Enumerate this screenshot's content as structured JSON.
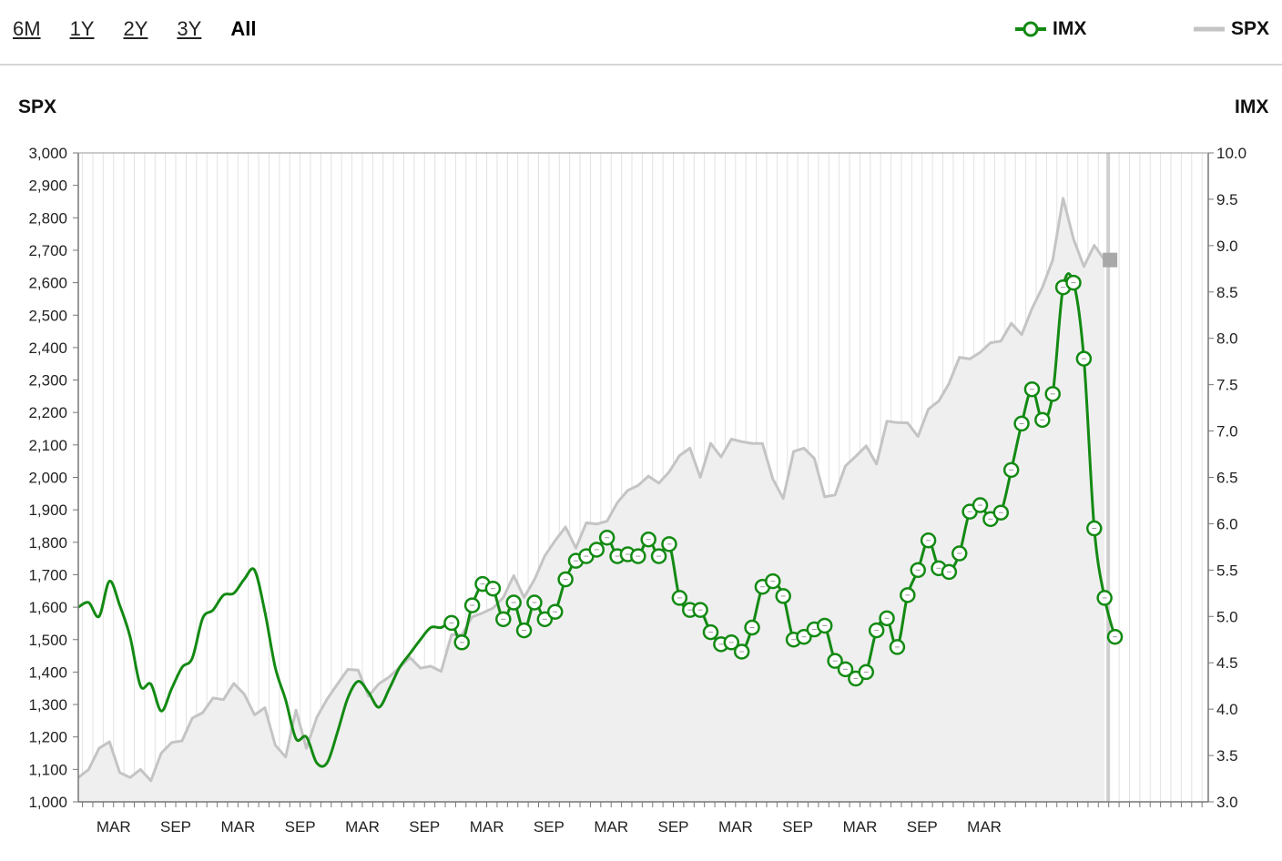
{
  "range_buttons": [
    {
      "label": "6M",
      "active": false
    },
    {
      "label": "1Y",
      "active": false
    },
    {
      "label": "2Y",
      "active": false
    },
    {
      "label": "3Y",
      "active": false
    },
    {
      "label": "All",
      "active": true
    }
  ],
  "legend": [
    {
      "name": "IMX",
      "color": "#138a13"
    },
    {
      "name": "SPX",
      "color": "#c4c4c4"
    }
  ],
  "chart_data": {
    "type": "line",
    "left_axis_title": "SPX",
    "right_axis_title": "IMX",
    "left_range": [
      1000,
      3000
    ],
    "right_range": [
      3.0,
      10.0
    ],
    "left_ticks": [
      "1,000",
      "1,100",
      "1,200",
      "1,300",
      "1,400",
      "1,500",
      "1,600",
      "1,700",
      "1,800",
      "1,900",
      "2,000",
      "2,100",
      "2,200",
      "2,300",
      "2,400",
      "2,500",
      "2,600",
      "2,700",
      "2,800",
      "2,900",
      "3,000"
    ],
    "right_ticks": [
      "3.0",
      "3.5",
      "4.0",
      "4.5",
      "5.0",
      "5.5",
      "6.0",
      "6.5",
      "7.0",
      "7.5",
      "8.0",
      "8.5",
      "9.0",
      "9.5",
      "10.0"
    ],
    "x_range": [
      0,
      109
    ],
    "x_ticks": [
      {
        "label": "MAR",
        "x": 3.4
      },
      {
        "label": "SEP",
        "x": 9.4
      },
      {
        "label": "MAR",
        "x": 15.4
      },
      {
        "label": "SEP",
        "x": 21.4
      },
      {
        "label": "MAR",
        "x": 27.4
      },
      {
        "label": "SEP",
        "x": 33.4
      },
      {
        "label": "MAR",
        "x": 39.4
      },
      {
        "label": "SEP",
        "x": 45.4
      },
      {
        "label": "MAR",
        "x": 51.4
      },
      {
        "label": "SEP",
        "x": 57.4
      },
      {
        "label": "MAR",
        "x": 63.4
      },
      {
        "label": "SEP",
        "x": 69.4
      },
      {
        "label": "MAR",
        "x": 75.4
      },
      {
        "label": "SEP",
        "x": 81.4
      },
      {
        "label": "MAR",
        "x": 87.4
      }
    ],
    "grid": "vertical-monthly",
    "series": [
      {
        "name": "SPX",
        "axis": "left",
        "style": "area",
        "color": "#c4c4c4",
        "values": [
          1075,
          1100,
          1165,
          1185,
          1090,
          1075,
          1100,
          1065,
          1150,
          1183,
          1188,
          1258,
          1275,
          1320,
          1315,
          1365,
          1332,
          1268,
          1290,
          1175,
          1138,
          1283,
          1165,
          1260,
          1316,
          1363,
          1408,
          1406,
          1326,
          1364,
          1385,
          1415,
          1445,
          1412,
          1418,
          1402,
          1515,
          1515,
          1570,
          1582,
          1597,
          1630,
          1697,
          1630,
          1685,
          1758,
          1805,
          1847,
          1782,
          1860,
          1856,
          1865,
          1922,
          1960,
          1975,
          2004,
          1982,
          2017,
          2067,
          2090,
          2000,
          2105,
          2063,
          2118,
          2110,
          2105,
          2104,
          1995,
          1935,
          2080,
          2090,
          2058,
          1940,
          1946,
          2035,
          2065,
          2097,
          2041,
          2173,
          2169,
          2168,
          2126,
          2210,
          2235,
          2290,
          2370,
          2365,
          2385,
          2415,
          2420,
          2475,
          2440,
          2520,
          2585,
          2670,
          2860,
          2735,
          2650,
          2715,
          2670
        ]
      },
      {
        "name": "IMX",
        "axis": "right",
        "style": "line",
        "color": "#138a13",
        "curve": [
          [
            0,
            5.1
          ],
          [
            1,
            5.15
          ],
          [
            2,
            5.0
          ],
          [
            3,
            5.38
          ],
          [
            4,
            5.12
          ],
          [
            5,
            4.78
          ],
          [
            6,
            4.25
          ],
          [
            7,
            4.27
          ],
          [
            8,
            3.98
          ],
          [
            9,
            4.22
          ],
          [
            10,
            4.45
          ],
          [
            11,
            4.55
          ],
          [
            12,
            4.98
          ],
          [
            13,
            5.07
          ],
          [
            14,
            5.23
          ],
          [
            15,
            5.25
          ],
          [
            16,
            5.4
          ],
          [
            17,
            5.5
          ],
          [
            18,
            5.05
          ],
          [
            19,
            4.45
          ],
          [
            20,
            4.1
          ],
          [
            21,
            3.68
          ],
          [
            22,
            3.7
          ],
          [
            23,
            3.42
          ],
          [
            24,
            3.42
          ],
          [
            25,
            3.75
          ],
          [
            26,
            4.12
          ],
          [
            27,
            4.3
          ],
          [
            28,
            4.18
          ],
          [
            29,
            4.02
          ],
          [
            30,
            4.22
          ],
          [
            31,
            4.45
          ],
          [
            32,
            4.6
          ],
          [
            33,
            4.75
          ],
          [
            34,
            4.88
          ],
          [
            35,
            4.88
          ]
        ],
        "markers": [
          [
            36,
            4.93
          ],
          [
            37,
            4.72
          ],
          [
            38,
            5.12
          ],
          [
            39,
            5.35
          ],
          [
            40,
            5.3
          ],
          [
            41,
            4.97
          ],
          [
            42,
            5.15
          ],
          [
            43,
            4.85
          ],
          [
            44,
            5.15
          ],
          [
            45,
            4.97
          ],
          [
            46,
            5.05
          ],
          [
            47,
            5.4
          ],
          [
            48,
            5.6
          ],
          [
            49,
            5.65
          ],
          [
            50,
            5.72
          ],
          [
            51,
            5.85
          ],
          [
            52,
            5.65
          ],
          [
            53,
            5.67
          ],
          [
            54,
            5.65
          ],
          [
            55,
            5.83
          ],
          [
            56,
            5.65
          ],
          [
            57,
            5.78
          ],
          [
            58,
            5.2
          ],
          [
            59,
            5.07
          ],
          [
            60,
            5.07
          ],
          [
            61,
            4.83
          ],
          [
            62,
            4.7
          ],
          [
            63,
            4.72
          ],
          [
            64,
            4.62
          ],
          [
            65,
            4.88
          ],
          [
            66,
            5.32
          ],
          [
            67,
            5.38
          ],
          [
            68,
            5.22
          ],
          [
            69,
            4.75
          ],
          [
            70,
            4.78
          ],
          [
            71,
            4.86
          ],
          [
            72,
            4.9
          ],
          [
            73,
            4.52
          ],
          [
            74,
            4.43
          ],
          [
            75,
            4.33
          ],
          [
            76,
            4.4
          ],
          [
            77,
            4.85
          ],
          [
            78,
            4.98
          ],
          [
            79,
            4.67
          ],
          [
            80,
            5.23
          ],
          [
            81,
            5.5
          ],
          [
            82,
            5.82
          ],
          [
            83,
            5.52
          ],
          [
            84,
            5.48
          ],
          [
            85,
            5.68
          ],
          [
            86,
            6.13
          ],
          [
            87,
            6.2
          ],
          [
            88,
            6.05
          ],
          [
            89,
            6.12
          ],
          [
            90,
            6.58
          ],
          [
            91,
            7.08
          ],
          [
            92,
            7.45
          ],
          [
            93,
            7.12
          ],
          [
            94,
            7.4
          ],
          [
            95,
            8.55
          ],
          [
            96,
            8.6
          ],
          [
            97,
            7.78
          ],
          [
            98,
            5.95
          ],
          [
            99,
            5.2
          ],
          [
            100,
            4.78
          ]
        ]
      }
    ]
  }
}
